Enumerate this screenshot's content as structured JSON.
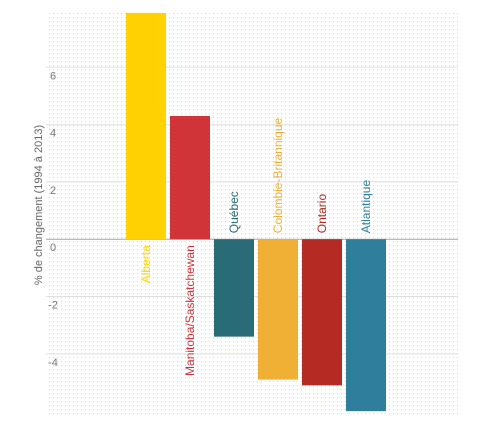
{
  "chart_data": {
    "type": "bar",
    "title": "",
    "xlabel": "",
    "ylabel": "% de changement (1994 à 2013)",
    "ylim": [
      -6.1,
      8.0
    ],
    "yticks": [
      -4,
      -2,
      0,
      2,
      4,
      6
    ],
    "grid": true,
    "categories": [
      "Alberta",
      "Manitoba/Saskatchewan",
      "Québec",
      "Colombie-Britannique",
      "Ontario",
      "Atlantique"
    ],
    "values": [
      7.9,
      4.3,
      -3.4,
      -4.9,
      -5.1,
      -6.0
    ],
    "colors": [
      "#FFD200",
      "#D13438",
      "#2A6B78",
      "#F0B035",
      "#B52A22",
      "#2F7E9C"
    ]
  }
}
